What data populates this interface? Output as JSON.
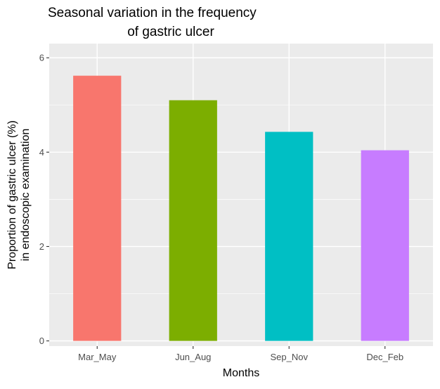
{
  "chart_data": {
    "type": "bar",
    "title_lines": [
      "Seasonal variation in the frequency",
      "of gastric ulcer"
    ],
    "xlabel": "Months",
    "ylabel_lines": [
      "Proportion of gastric ulcer (%)",
      "in endoscopic examination"
    ],
    "categories": [
      "Mar_May",
      "Jun_Aug",
      "Sep_Nov",
      "Dec_Feb"
    ],
    "values": [
      5.62,
      5.1,
      4.43,
      4.04
    ],
    "colors": [
      "#F8766D",
      "#7CAE00",
      "#00BFC4",
      "#C77CFF"
    ],
    "ylim": [
      -0.11,
      6.3
    ],
    "y_ticks": [
      0,
      2,
      4,
      6
    ],
    "y_tick_labels": [
      "0",
      "2",
      "4",
      "6"
    ],
    "panel_background": "#EBEBEB",
    "grid_color": "#FFFFFF",
    "grid": true,
    "legend": "none"
  }
}
